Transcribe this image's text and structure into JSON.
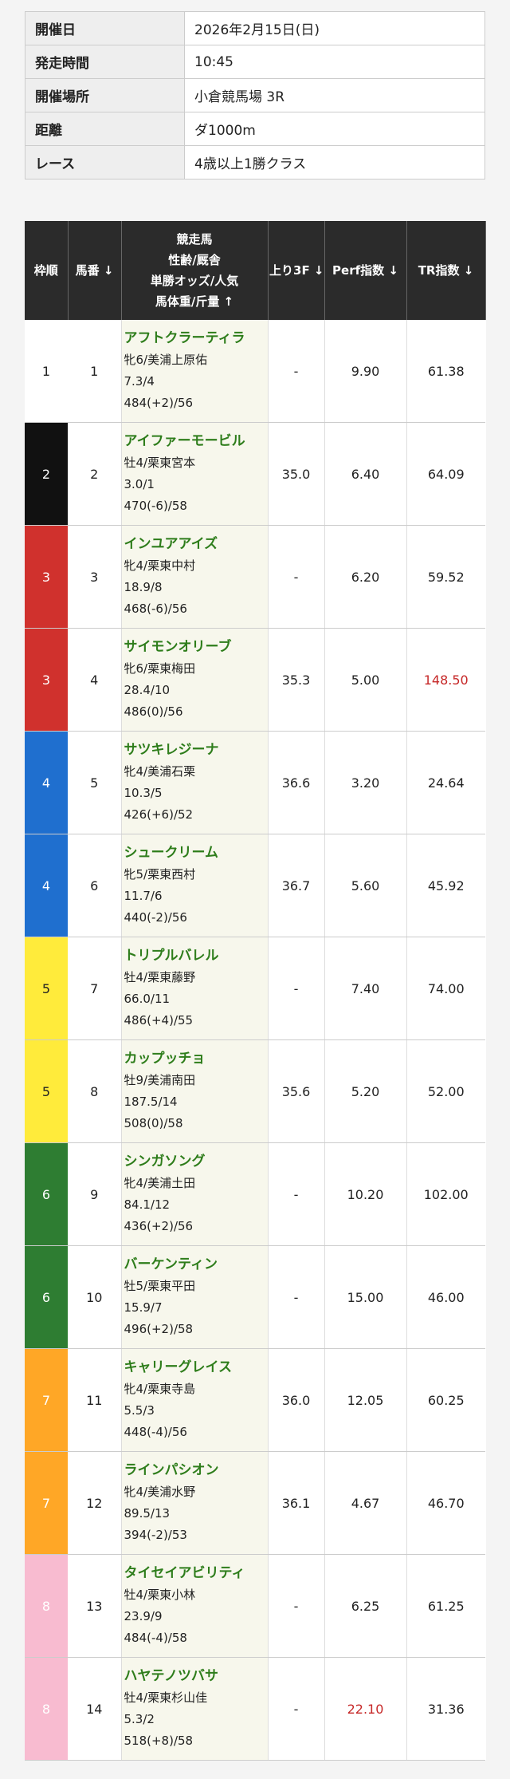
{
  "info": {
    "rows": [
      [
        "開催日",
        "2026年2月15日(日)"
      ],
      [
        "発走時間",
        "10:45"
      ],
      [
        "開催場所",
        "小倉競馬場 3R"
      ],
      [
        "距離",
        "ダ1000m"
      ],
      [
        "レース",
        "4歳以上1勝クラス"
      ]
    ]
  },
  "table": {
    "header": {
      "waku": "枠順",
      "umaban": "馬番 ↓",
      "horse": [
        "競走馬",
        "性齢/厩舎",
        "単勝オッズ/人気",
        "馬体重/斤量 ↑"
      ],
      "agari": "上り3F ↓",
      "perf": "Perf指数 ↓",
      "tr": "TR指数 ↓"
    },
    "waku_colors": {
      "1": [
        "#ffffff",
        "#222222"
      ],
      "2": [
        "#111111",
        "#ffffff"
      ],
      "3": [
        "#d0312d",
        "#ffffff"
      ],
      "4": [
        "#1f6fcf",
        "#ffffff"
      ],
      "5": [
        "#ffeb3b",
        "#222222"
      ],
      "6": [
        "#2e7d32",
        "#ffffff"
      ],
      "7": [
        "#ffa726",
        "#ffffff"
      ],
      "8": [
        "#f8bbd0",
        "#ffffff"
      ]
    },
    "highlight_color": "#c62828",
    "rows": [
      {
        "waku": "1",
        "umaban": "1",
        "name": "アフトクラーティラ",
        "info": "牝6/美浦上原佑",
        "odds": "7.3/4",
        "weight": "484(+2)/56",
        "agari": "-",
        "perf": "9.90",
        "tr": "61.38"
      },
      {
        "waku": "2",
        "umaban": "2",
        "name": "アイファーモービル",
        "info": "牡4/栗東宮本",
        "odds": "3.0/1",
        "weight": "470(-6)/58",
        "agari": "35.0",
        "perf": "6.40",
        "tr": "64.09"
      },
      {
        "waku": "3",
        "umaban": "3",
        "name": "インユアアイズ",
        "info": "牝4/栗東中村",
        "odds": "18.9/8",
        "weight": "468(-6)/56",
        "agari": "-",
        "perf": "6.20",
        "tr": "59.52"
      },
      {
        "waku": "3",
        "umaban": "4",
        "name": "サイモンオリーブ",
        "info": "牝6/栗東梅田",
        "odds": "28.4/10",
        "weight": "486(0)/56",
        "agari": "35.3",
        "perf": "5.00",
        "tr": "148.50",
        "highlight": "tr"
      },
      {
        "waku": "4",
        "umaban": "5",
        "name": "サツキレジーナ",
        "info": "牝4/美浦石栗",
        "odds": "10.3/5",
        "weight": "426(+6)/52",
        "agari": "36.6",
        "perf": "3.20",
        "tr": "24.64"
      },
      {
        "waku": "4",
        "umaban": "6",
        "name": "シュークリーム",
        "info": "牝5/栗東西村",
        "odds": "11.7/6",
        "weight": "440(-2)/56",
        "agari": "36.7",
        "perf": "5.60",
        "tr": "45.92"
      },
      {
        "waku": "5",
        "umaban": "7",
        "name": "トリプルバレル",
        "info": "牡4/栗東藤野",
        "odds": "66.0/11",
        "weight": "486(+4)/55",
        "agari": "-",
        "perf": "7.40",
        "tr": "74.00"
      },
      {
        "waku": "5",
        "umaban": "8",
        "name": "カップッチョ",
        "info": "牡9/美浦南田",
        "odds": "187.5/14",
        "weight": "508(0)/58",
        "agari": "35.6",
        "perf": "5.20",
        "tr": "52.00"
      },
      {
        "waku": "6",
        "umaban": "9",
        "name": "シンガソング",
        "info": "牝4/美浦土田",
        "odds": "84.1/12",
        "weight": "436(+2)/56",
        "agari": "-",
        "perf": "10.20",
        "tr": "102.00"
      },
      {
        "waku": "6",
        "umaban": "10",
        "name": "バーケンティン",
        "info": "牡5/栗東平田",
        "odds": "15.9/7",
        "weight": "496(+2)/58",
        "agari": "-",
        "perf": "15.00",
        "tr": "46.00"
      },
      {
        "waku": "7",
        "umaban": "11",
        "name": "キャリーグレイス",
        "info": "牝4/栗東寺島",
        "odds": "5.5/3",
        "weight": "448(-4)/56",
        "agari": "36.0",
        "perf": "12.05",
        "tr": "60.25"
      },
      {
        "waku": "7",
        "umaban": "12",
        "name": "ラインパシオン",
        "info": "牝4/美浦水野",
        "odds": "89.5/13",
        "weight": "394(-2)/53",
        "agari": "36.1",
        "perf": "4.67",
        "tr": "46.70"
      },
      {
        "waku": "8",
        "umaban": "13",
        "name": "タイセイアビリティ",
        "info": "牡4/栗東小林",
        "odds": "23.9/9",
        "weight": "484(-4)/58",
        "agari": "-",
        "perf": "6.25",
        "tr": "61.25"
      },
      {
        "waku": "8",
        "umaban": "14",
        "name": "ハヤテノツバサ",
        "info": "牡4/栗東杉山佳",
        "odds": "5.3/2",
        "weight": "518(+8)/58",
        "agari": "-",
        "perf": "22.10",
        "tr": "31.36",
        "highlight": "perf"
      }
    ]
  }
}
